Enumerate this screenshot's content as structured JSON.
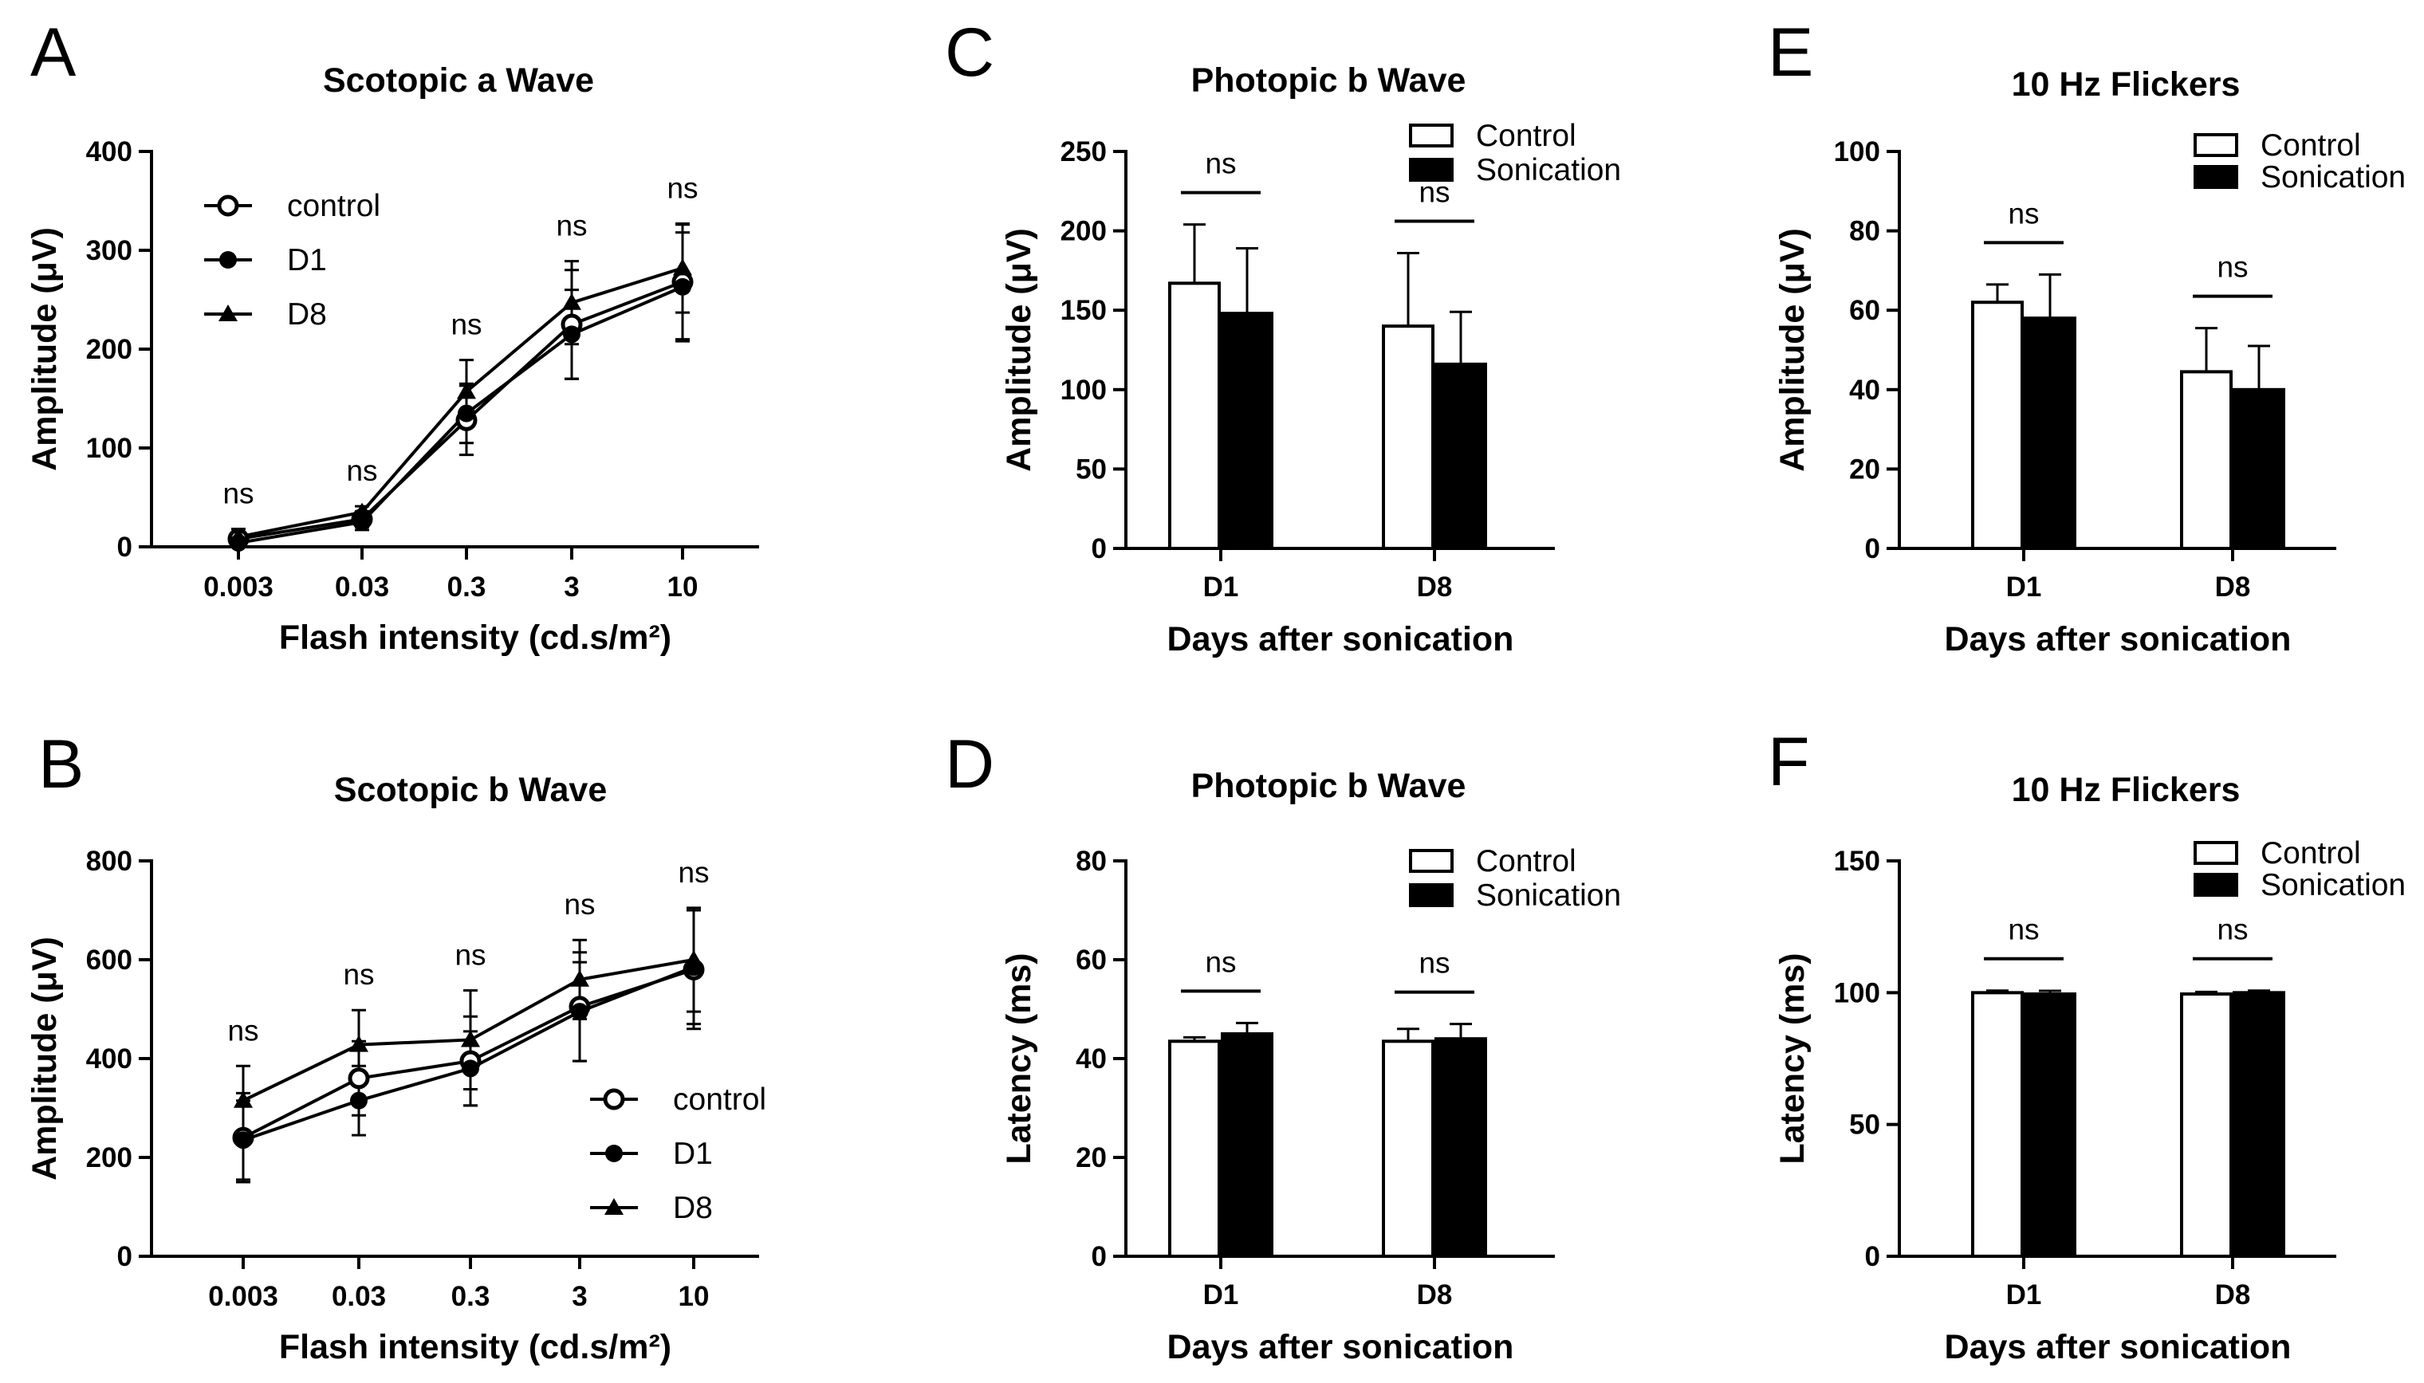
{
  "figure": {
    "panels": [
      "A",
      "B",
      "C",
      "D",
      "E",
      "F"
    ]
  },
  "chart_data": [
    {
      "id": "A",
      "type": "line",
      "title": "Scotopic a Wave",
      "xlabel": "Flash intensity (cd.s/m²)",
      "ylabel": "Amplitude (μV)",
      "categories": [
        "0.003",
        "0.03",
        "0.3",
        "3",
        "10"
      ],
      "ylim": [
        0,
        400
      ],
      "yticks": [
        0,
        100,
        200,
        300,
        400
      ],
      "legend_position": "top-left",
      "series": [
        {
          "name": "control",
          "marker": "open-circle",
          "values": [
            8,
            28,
            128,
            225,
            268
          ],
          "errors": [
            10,
            8,
            35,
            55,
            58
          ]
        },
        {
          "name": "D1",
          "marker": "filled-circle",
          "values": [
            4,
            25,
            135,
            215,
            263
          ],
          "errors": [
            8,
            8,
            30,
            45,
            55
          ]
        },
        {
          "name": "D8",
          "marker": "filled-triangle",
          "values": [
            10,
            35,
            157,
            247,
            282
          ],
          "errors": [
            8,
            6,
            32,
            42,
            45
          ]
        }
      ],
      "annotations": [
        "ns",
        "ns",
        "ns",
        "ns",
        "ns"
      ]
    },
    {
      "id": "B",
      "type": "line",
      "title": "Scotopic b Wave",
      "xlabel": "Flash intensity (cd.s/m²)",
      "ylabel": "Amplitude (μV)",
      "categories": [
        "0.003",
        "0.03",
        "0.3",
        "3",
        "10"
      ],
      "ylim": [
        0,
        800
      ],
      "yticks": [
        0,
        200,
        400,
        600,
        800
      ],
      "legend_position": "bottom-right",
      "series": [
        {
          "name": "control",
          "marker": "open-circle",
          "values": [
            240,
            360,
            395,
            505,
            580
          ],
          "errors": [
            90,
            75,
            90,
            110,
            120
          ]
        },
        {
          "name": "D1",
          "marker": "filled-circle",
          "values": [
            235,
            315,
            380,
            495,
            585
          ],
          "errors": [
            80,
            70,
            75,
            100,
            115
          ]
        },
        {
          "name": "D8",
          "marker": "filled-triangle",
          "values": [
            315,
            428,
            438,
            560,
            600
          ],
          "errors": [
            70,
            70,
            100,
            80,
            105
          ]
        }
      ],
      "annotations": [
        "ns",
        "ns",
        "ns",
        "ns",
        "ns"
      ]
    },
    {
      "id": "C",
      "type": "bar",
      "title": "Photopic b Wave",
      "xlabel": "Days after sonication",
      "ylabel": "Amplitude (μV)",
      "categories": [
        "D1",
        "D8"
      ],
      "ylim": [
        0,
        250
      ],
      "yticks": [
        0,
        50,
        100,
        150,
        200,
        250
      ],
      "legend_position": "top-right",
      "series": [
        {
          "name": "Control",
          "fill": "#ffffff",
          "values": [
            167,
            140
          ],
          "errors": [
            37,
            46
          ]
        },
        {
          "name": "Sonication",
          "fill": "#000000",
          "values": [
            148,
            116
          ],
          "errors": [
            41,
            33
          ]
        }
      ],
      "annotations": [
        "ns",
        "ns"
      ]
    },
    {
      "id": "D",
      "type": "bar",
      "title": "Photopic b Wave",
      "xlabel": "Days after sonication",
      "ylabel": "Latency (ms)",
      "categories": [
        "D1",
        "D8"
      ],
      "ylim": [
        0,
        80
      ],
      "yticks": [
        0,
        20,
        40,
        60,
        80
      ],
      "legend_position": "top-right",
      "series": [
        {
          "name": "Control",
          "fill": "#ffffff",
          "values": [
            43.5,
            43.5
          ],
          "errors": [
            0.8,
            2.5
          ]
        },
        {
          "name": "Sonication",
          "fill": "#000000",
          "values": [
            45,
            44
          ],
          "errors": [
            2.2,
            3
          ]
        }
      ],
      "annotations": [
        "ns",
        "ns"
      ]
    },
    {
      "id": "E",
      "type": "bar",
      "title": "10 Hz Flickers",
      "xlabel": "Days after sonication",
      "ylabel": "Amplitude (μV)",
      "categories": [
        "D1",
        "D8"
      ],
      "ylim": [
        0,
        100
      ],
      "yticks": [
        0,
        20,
        40,
        60,
        80,
        100
      ],
      "legend_position": "top-right",
      "series": [
        {
          "name": "Control",
          "fill": "#ffffff",
          "values": [
            62,
            44.5
          ],
          "errors": [
            4.5,
            11
          ]
        },
        {
          "name": "Sonication",
          "fill": "#000000",
          "values": [
            58,
            40
          ],
          "errors": [
            11,
            11
          ]
        }
      ],
      "annotations": [
        "ns",
        "ns"
      ]
    },
    {
      "id": "F",
      "type": "bar",
      "title": "10 Hz Flickers",
      "xlabel": "Days after sonication",
      "ylabel": "Latency (ms)",
      "categories": [
        "D1",
        "D8"
      ],
      "ylim": [
        0,
        150
      ],
      "yticks": [
        0,
        50,
        100,
        150
      ],
      "legend_position": "top-right",
      "series": [
        {
          "name": "Control",
          "fill": "#ffffff",
          "values": [
            100,
            99.5
          ],
          "errors": [
            0.8,
            0.8
          ]
        },
        {
          "name": "Sonication",
          "fill": "#000000",
          "values": [
            99.5,
            100
          ],
          "errors": [
            1.2,
            0.8
          ]
        }
      ],
      "annotations": [
        "ns",
        "ns"
      ]
    }
  ]
}
